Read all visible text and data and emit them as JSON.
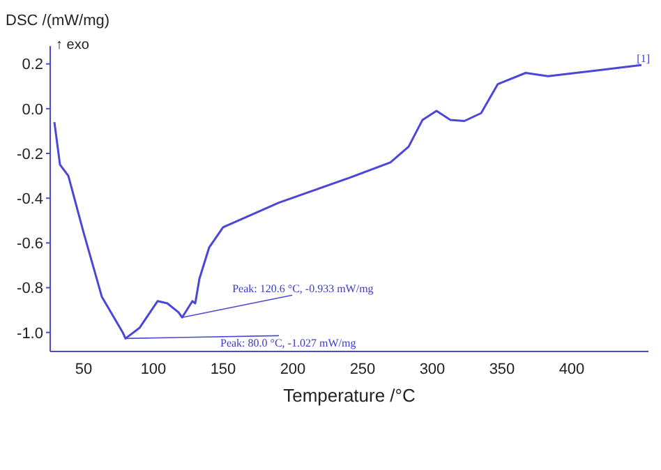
{
  "chart_data": {
    "type": "line",
    "ylabel": "DSC /(mW/mg)",
    "xlabel": "Temperature /°C",
    "x": [
      29,
      33,
      39,
      50,
      63,
      78,
      80,
      90,
      103,
      110,
      118,
      120.6,
      128,
      130,
      133,
      140,
      150,
      190,
      240,
      270,
      283,
      293,
      303,
      313,
      323,
      335,
      347,
      367,
      383,
      417,
      450
    ],
    "series": [
      {
        "color": "#4b46d6",
        "values": [
          -0.06,
          -0.25,
          -0.3,
          -0.555,
          -0.84,
          -1.0,
          -1.027,
          -0.98,
          -0.86,
          -0.87,
          -0.91,
          -0.933,
          -0.86,
          -0.87,
          -0.76,
          -0.62,
          -0.53,
          -0.42,
          -0.31,
          -0.24,
          -0.17,
          -0.05,
          -0.01,
          -0.05,
          -0.055,
          -0.02,
          0.11,
          0.16,
          0.145,
          0.17,
          0.195
        ]
      }
    ],
    "xlim": [
      26,
      455
    ],
    "xticks": [
      50,
      100,
      150,
      200,
      250,
      300,
      350,
      400
    ],
    "ylim": [
      -1.085,
      0.28
    ],
    "yticks": [
      {
        "value": -1,
        "label": "-1.0"
      },
      {
        "value": -0.8,
        "label": "-0.8"
      },
      {
        "value": -0.6,
        "label": "-0.6"
      },
      {
        "value": -0.4,
        "label": "-0.4"
      },
      {
        "value": -0.2,
        "label": "-0.2"
      },
      {
        "value": 0,
        "label": "0.0"
      },
      {
        "value": 0.2,
        "label": "0.2"
      }
    ],
    "grid": false,
    "marker": "none",
    "line_style": "solid",
    "annotations": [
      "↑ exo",
      {
        "text": "Peak: 120.6 °C, -0.933 mW/mg",
        "x": 120.6,
        "y": -0.933
      },
      {
        "text": "Peak: 80.0 °C, -1.027 mW/mg",
        "x": 80,
        "y": -1.027
      },
      {
        "text": "[1]",
        "x": 450,
        "y": 0.195
      }
    ]
  }
}
